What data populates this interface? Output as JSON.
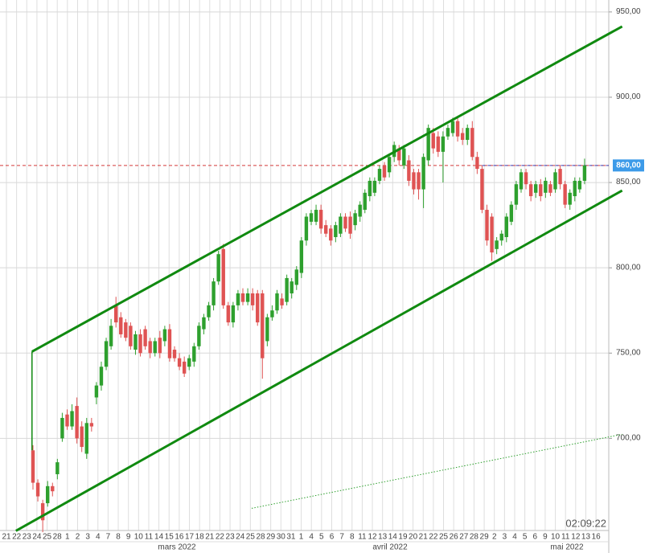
{
  "chart_data": {
    "type": "candlestick",
    "ylim": [
      646,
      957
    ],
    "yticks": [
      {
        "value": 950,
        "label": "950,00"
      },
      {
        "value": 900,
        "label": "900,00"
      },
      {
        "value": 850,
        "label": "850,00"
      },
      {
        "value": 800,
        "label": "800,00"
      },
      {
        "value": 750,
        "label": "750,00"
      },
      {
        "value": 700,
        "label": "700,00"
      }
    ],
    "grid": true,
    "up_color": "#2ea02e",
    "down_color": "#df5353",
    "x_labels": [
      "21",
      "22",
      "23",
      "24",
      "25",
      "28",
      "1",
      "2",
      "3",
      "4",
      "7",
      "8",
      "9",
      "10",
      "11",
      "14",
      "15",
      "16",
      "17",
      "18",
      "21",
      "22",
      "23",
      "24",
      "25",
      "28",
      "29",
      "30",
      "31",
      "1",
      "4",
      "5",
      "6",
      "7",
      "8",
      "11",
      "12",
      "13",
      "14",
      "19",
      "20",
      "21",
      "22",
      "25",
      "26",
      "27",
      "28",
      "29",
      "2",
      "3",
      "4",
      "5",
      "6",
      "9",
      "10",
      "11",
      "12",
      "13",
      "16"
    ],
    "months": [
      "mars 2022",
      "avril 2022",
      "mai 2022"
    ],
    "ohlc": [
      [
        693,
        696,
        670,
        674
      ],
      [
        674,
        676,
        663,
        666
      ],
      [
        662,
        664,
        645,
        652
      ],
      [
        662,
        675,
        660,
        672
      ],
      [
        672,
        674,
        666,
        669
      ],
      [
        679,
        688,
        676,
        686
      ],
      [
        700,
        715,
        698,
        712
      ],
      [
        714,
        717,
        705,
        707
      ],
      [
        707,
        720,
        705,
        716
      ],
      [
        719,
        724,
        697,
        700
      ],
      [
        707,
        710,
        692,
        695
      ],
      [
        691,
        712,
        688,
        709
      ],
      [
        709,
        712,
        704,
        707
      ],
      [
        724,
        733,
        720,
        731
      ],
      [
        731,
        745,
        728,
        742
      ],
      [
        742,
        759,
        740,
        757
      ],
      [
        754,
        770,
        752,
        766
      ],
      [
        778,
        783,
        765,
        768
      ],
      [
        771,
        774,
        759,
        761
      ],
      [
        768,
        770,
        757,
        759
      ],
      [
        766,
        768,
        752,
        754
      ],
      [
        752,
        763,
        749,
        761
      ],
      [
        761,
        764,
        748,
        750
      ],
      [
        764,
        766,
        752,
        754
      ],
      [
        757,
        759,
        747,
        750
      ],
      [
        750,
        759,
        748,
        757
      ],
      [
        759,
        763,
        747,
        750
      ],
      [
        757,
        766,
        754,
        764
      ],
      [
        764,
        767,
        745,
        747
      ],
      [
        752,
        754,
        745,
        747
      ],
      [
        747,
        750,
        740,
        742
      ],
      [
        745,
        748,
        736,
        738
      ],
      [
        742,
        749,
        740,
        747
      ],
      [
        745,
        756,
        742,
        754
      ],
      [
        754,
        768,
        752,
        766
      ],
      [
        764,
        773,
        761,
        771
      ],
      [
        771,
        780,
        769,
        778
      ],
      [
        778,
        794,
        775,
        792
      ],
      [
        792,
        810,
        790,
        808
      ],
      [
        811,
        814,
        776,
        778
      ],
      [
        778,
        780,
        766,
        768
      ],
      [
        768,
        780,
        765,
        778
      ],
      [
        778,
        787,
        775,
        785
      ],
      [
        785,
        788,
        778,
        780
      ],
      [
        780,
        788,
        778,
        785
      ],
      [
        785,
        788,
        775,
        778
      ],
      [
        785,
        787,
        766,
        768
      ],
      [
        785,
        787,
        735,
        747
      ],
      [
        757,
        773,
        754,
        771
      ],
      [
        771,
        778,
        769,
        775
      ],
      [
        775,
        787,
        773,
        785
      ],
      [
        782,
        785,
        776,
        778
      ],
      [
        780,
        796,
        778,
        794
      ],
      [
        785,
        794,
        782,
        792
      ],
      [
        790,
        801,
        787,
        799
      ],
      [
        797,
        818,
        794,
        816
      ],
      [
        816,
        832,
        813,
        830
      ],
      [
        827,
        834,
        825,
        832
      ],
      [
        827,
        837,
        825,
        834
      ],
      [
        834,
        837,
        820,
        823
      ],
      [
        825,
        828,
        818,
        820
      ],
      [
        823,
        825,
        813,
        816
      ],
      [
        818,
        827,
        815,
        825
      ],
      [
        820,
        832,
        818,
        830
      ],
      [
        830,
        832,
        821,
        823
      ],
      [
        830,
        833,
        817,
        820
      ],
      [
        825,
        834,
        822,
        832
      ],
      [
        830,
        839,
        827,
        837
      ],
      [
        834,
        846,
        832,
        844
      ],
      [
        842,
        853,
        839,
        851
      ],
      [
        844,
        853,
        842,
        851
      ],
      [
        851,
        860,
        849,
        858
      ],
      [
        860,
        862,
        851,
        853
      ],
      [
        856,
        867,
        853,
        865
      ],
      [
        865,
        874,
        862,
        872
      ],
      [
        870,
        872,
        860,
        863
      ],
      [
        860,
        872,
        858,
        870
      ],
      [
        863,
        866,
        848,
        851
      ],
      [
        856,
        858,
        843,
        846
      ],
      [
        856,
        858,
        840,
        846
      ],
      [
        846,
        867,
        835,
        865
      ],
      [
        863,
        884,
        860,
        882
      ],
      [
        879,
        882,
        867,
        870
      ],
      [
        877,
        880,
        865,
        868
      ],
      [
        868,
        880,
        850,
        877
      ],
      [
        877,
        884,
        875,
        882
      ],
      [
        879,
        888,
        877,
        886
      ],
      [
        886,
        889,
        874,
        877
      ],
      [
        879,
        882,
        872,
        875
      ],
      [
        875,
        884,
        872,
        882
      ],
      [
        882,
        886,
        863,
        865
      ],
      [
        865,
        868,
        855,
        858
      ],
      [
        858,
        860,
        832,
        834
      ],
      [
        834,
        837,
        813,
        816
      ],
      [
        830,
        832,
        804,
        809
      ],
      [
        811,
        818,
        808,
        816
      ],
      [
        816,
        822,
        813,
        820
      ],
      [
        818,
        832,
        815,
        830
      ],
      [
        827,
        839,
        825,
        837
      ],
      [
        837,
        851,
        834,
        849
      ],
      [
        846,
        858,
        844,
        856
      ],
      [
        856,
        858,
        846,
        849
      ],
      [
        849,
        851,
        839,
        842
      ],
      [
        844,
        851,
        841,
        849
      ],
      [
        849,
        852,
        839,
        842
      ],
      [
        844,
        853,
        841,
        851
      ],
      [
        849,
        851,
        842,
        844
      ],
      [
        846,
        858,
        844,
        856
      ],
      [
        858,
        860,
        846,
        849
      ],
      [
        849,
        851,
        835,
        837
      ],
      [
        837,
        846,
        834,
        844
      ],
      [
        842,
        853,
        839,
        851
      ],
      [
        846,
        853,
        844,
        851
      ],
      [
        851,
        864,
        849,
        860
      ]
    ],
    "trendlines": [
      {
        "from": [
          -0.2,
          750.9
        ],
        "to": [
          120.7,
          941.5
        ],
        "color": "#108a10"
      },
      {
        "from": [
          -3.5,
          645.8
        ],
        "to": [
          120.7,
          845.3
        ],
        "color": "#108a10"
      }
    ],
    "dotted_line": {
      "from": [
        44.8,
        659
      ],
      "to": [
        120.7,
        702.4
      ],
      "color": "#2ea02e"
    },
    "price_line": {
      "value": 860,
      "label": "860,00",
      "color": "#d33a3a",
      "badge_color": "#3d9be9"
    },
    "clock": "02:09:22"
  }
}
